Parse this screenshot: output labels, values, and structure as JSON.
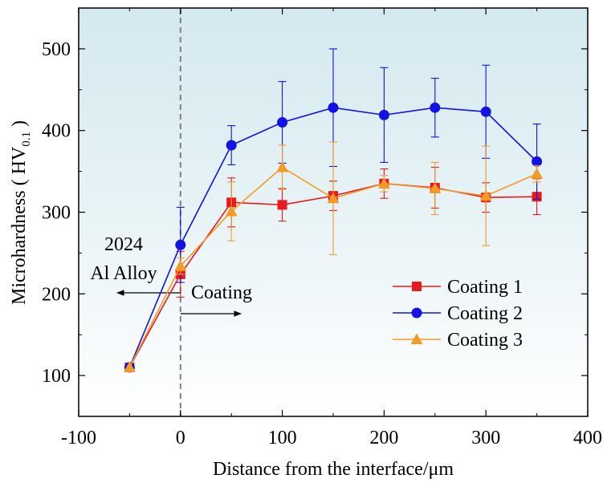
{
  "chart_data": {
    "type": "line",
    "title": "",
    "xlabel": "Distance from the interface/μm",
    "ylabel": {
      "main": "Microhardness ( HV",
      "sub": "0.1",
      "close": " )"
    },
    "xlim": [
      -100,
      400
    ],
    "ylim": [
      50,
      550
    ],
    "xticks": [
      -100,
      0,
      100,
      200,
      300,
      400
    ],
    "yticks": [
      100,
      200,
      300,
      400,
      500
    ],
    "grid": false,
    "legend_position": "center-right",
    "background": "gradient light blue (top) to white (bottom)",
    "x": [
      -50,
      0,
      50,
      100,
      150,
      200,
      250,
      300,
      350
    ],
    "series": [
      {
        "name": "Coating 1",
        "color": "#e8191f",
        "marker": "square",
        "values": [
          110,
          224,
          312,
          309,
          320,
          335,
          330,
          318,
          319
        ],
        "error": [
          null,
          28,
          30,
          20,
          18,
          18,
          25,
          18,
          22
        ]
      },
      {
        "name": "Coating 2",
        "color": "#1212e6",
        "marker": "circle",
        "values": [
          110,
          260,
          382,
          410,
          428,
          419,
          428,
          423,
          362
        ],
        "error": [
          null,
          46,
          24,
          50,
          72,
          58,
          36,
          57,
          46
        ]
      },
      {
        "name": "Coating 3",
        "color": "#f39b26",
        "marker": "triangle",
        "values": [
          110,
          234,
          301,
          355,
          317,
          335,
          329,
          320,
          347
        ],
        "error": [
          null,
          10,
          36,
          27,
          69,
          10,
          32,
          61,
          10
        ]
      }
    ],
    "annotations": {
      "interface_line_x": 0,
      "left_label_line1": "2024",
      "left_label_line2": "Al Alloy",
      "right_label": "Coating"
    }
  }
}
